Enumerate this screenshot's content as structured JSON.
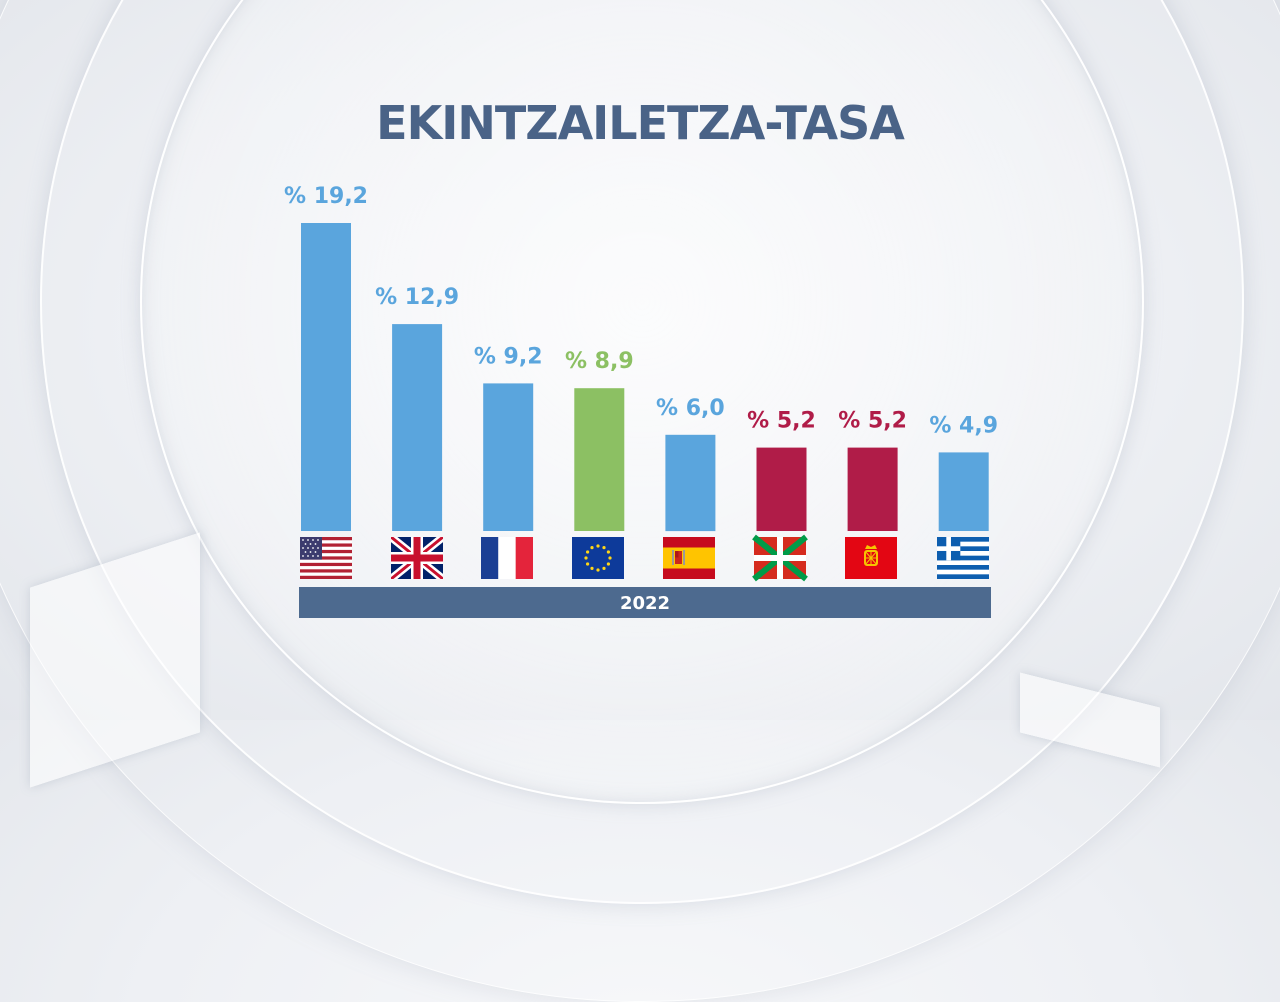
{
  "chart_data": {
    "type": "bar",
    "title": "EKINTZAILETZA-TASA",
    "period": "2022",
    "categories": [
      "us-flag",
      "uk-flag",
      "france-flag",
      "eu-flag",
      "spain-flag",
      "basque-flag",
      "navarre-flag",
      "greece-flag"
    ],
    "value_labels": [
      "% 19,2",
      "% 12,9",
      "% 9,2",
      "% 8,9",
      "% 6,0",
      "% 5,2",
      "% 5,2",
      "% 4,9"
    ],
    "values": [
      19.2,
      12.9,
      9.2,
      8.9,
      6.0,
      5.2,
      5.2,
      4.9
    ],
    "colors": [
      "#5aa5dd",
      "#5aa5dd",
      "#5aa5dd",
      "#8cc063",
      "#5aa5dd",
      "#b01c48",
      "#b01c48",
      "#5aa5dd"
    ],
    "ylim": [
      0,
      19.2
    ],
    "grid": false,
    "legend": "none"
  },
  "palette": {
    "title": "#4a6387",
    "axis_band": "#4d6a8f",
    "blue": "#5aa5dd",
    "green": "#8cc063",
    "crimson": "#b01c48"
  }
}
